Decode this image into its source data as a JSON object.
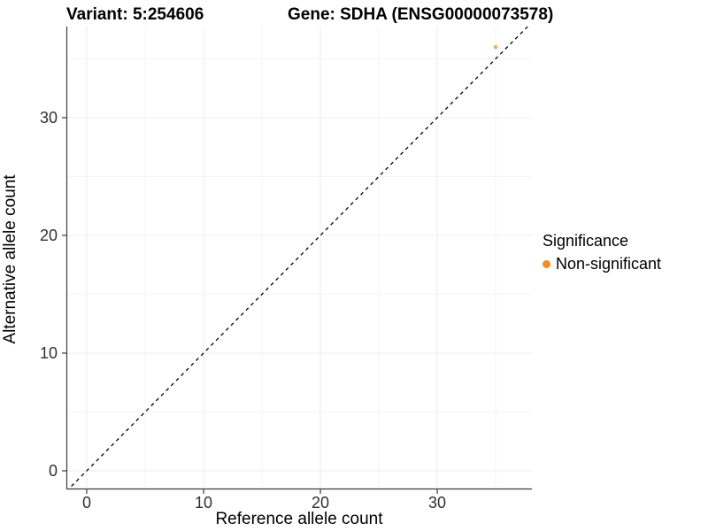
{
  "header": {
    "variant_title": "Variant: 5:254606",
    "gene_title": "Gene: SDHA (ENSG00000073578)"
  },
  "chart_data": {
    "type": "scatter",
    "title": "Variant: 5:254606 — Gene: SDHA (ENSG00000073578)",
    "xlabel": "Reference allele count",
    "ylabel": "Alternative allele count",
    "xlim": [
      -1.74,
      38.1
    ],
    "ylim": [
      -1.58,
      37.74
    ],
    "x_major_ticks": [
      0,
      10,
      20,
      30
    ],
    "y_major_ticks": [
      0,
      10,
      20,
      30
    ],
    "x_minor_ticks": [
      5,
      15,
      25,
      35
    ],
    "y_minor_ticks": [
      5,
      15,
      25,
      35
    ],
    "grid": true,
    "points": [
      {
        "x": 35,
        "y": 36,
        "series": "Non-significant"
      }
    ],
    "reference_line": {
      "type": "identity",
      "slope": 1,
      "intercept": 0,
      "style": "dashed",
      "color": "#000000"
    },
    "legend": {
      "title": "Significance",
      "position": "right",
      "items": [
        {
          "label": "Non-significant",
          "color": "#F68B1F"
        }
      ]
    },
    "style": {
      "point_color": "#F68B1F",
      "point_opacity": 0.72,
      "point_radius": 2.3,
      "grid_major_color": "#ECECEC",
      "grid_minor_color": "#F4F4F4",
      "axis_color": "#3C3C3C",
      "tick_color": "#3C3C3C",
      "background": "#FFFFFF"
    }
  }
}
